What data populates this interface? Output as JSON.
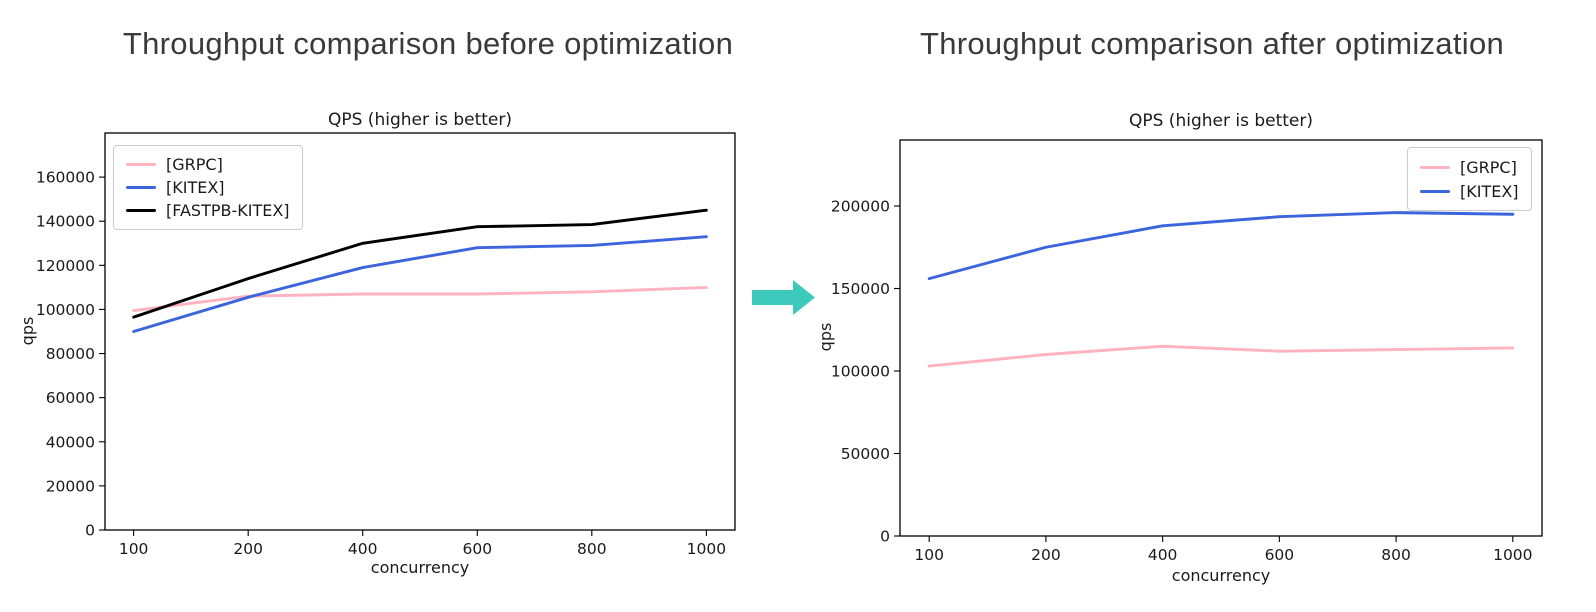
{
  "page": {
    "background": "#ffffff",
    "heading_before": "Throughput comparison before optimization",
    "heading_after": "Throughput comparison after optimization",
    "arrow": {
      "color": "#3ec9bd",
      "direction": "right"
    }
  },
  "chart_data": [
    {
      "type": "line",
      "title": "QPS (higher is better)",
      "xlabel": "concurrency",
      "ylabel": "qps",
      "categories": [
        100,
        200,
        400,
        600,
        800,
        1000
      ],
      "x_spacing": "categorical-even",
      "ylim": [
        0,
        180000
      ],
      "yticks": [
        0,
        20000,
        40000,
        60000,
        80000,
        100000,
        120000,
        140000,
        160000
      ],
      "grid": false,
      "legend_position": "upper-left",
      "series": [
        {
          "name": "[GRPC]",
          "color": "#ffb3c1",
          "values": [
            99500,
            106000,
            107000,
            107000,
            108000,
            110000
          ]
        },
        {
          "name": "[KITEX]",
          "color": "#3c64dc",
          "values": [
            90000,
            105500,
            119000,
            128000,
            129000,
            133000
          ]
        },
        {
          "name": "[FASTPB-KITEX]",
          "color": "#000000",
          "values": [
            96500,
            114000,
            130000,
            137500,
            138500,
            145000
          ]
        }
      ]
    },
    {
      "type": "line",
      "title": "QPS (higher is better)",
      "xlabel": "concurrency",
      "ylabel": "qps",
      "categories": [
        100,
        200,
        400,
        600,
        800,
        1000
      ],
      "x_spacing": "categorical-even",
      "ylim": [
        0,
        240000
      ],
      "yticks": [
        0,
        50000,
        100000,
        150000,
        200000
      ],
      "grid": false,
      "legend_position": "upper-right",
      "series": [
        {
          "name": "[GRPC]",
          "color": "#ffb3c1",
          "values": [
            103000,
            110000,
            115000,
            112000,
            113000,
            114000
          ]
        },
        {
          "name": "[KITEX]",
          "color": "#3c64dc",
          "values": [
            156000,
            175000,
            188000,
            193500,
            196000,
            195000
          ]
        }
      ]
    }
  ]
}
